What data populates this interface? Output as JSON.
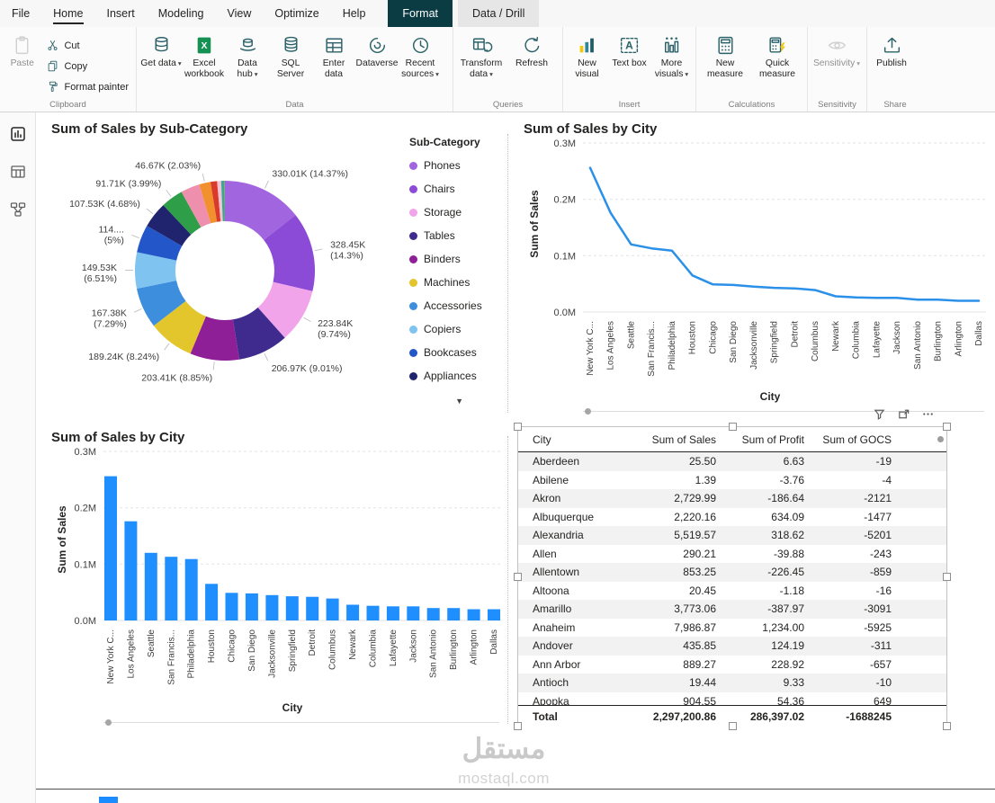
{
  "icons": {
    "chevron_down": "▾",
    "legend_more": "▼"
  },
  "menubar": {
    "items": [
      {
        "label": "File"
      },
      {
        "label": "Home"
      },
      {
        "label": "Insert"
      },
      {
        "label": "Modeling"
      },
      {
        "label": "View"
      },
      {
        "label": "Optimize"
      },
      {
        "label": "Help"
      }
    ],
    "contextual": [
      {
        "label": "Format"
      },
      {
        "label": "Data / Drill"
      }
    ]
  },
  "ribbon": {
    "groups": [
      {
        "label": "Clipboard",
        "items": [
          {
            "label": "Paste",
            "disabled": true
          },
          {
            "label": "Cut"
          },
          {
            "label": "Copy"
          },
          {
            "label": "Format painter"
          }
        ]
      },
      {
        "label": "Data",
        "items": [
          {
            "label": "Get data",
            "chev": true
          },
          {
            "label": "Excel workbook"
          },
          {
            "label": "Data hub",
            "chev": true
          },
          {
            "label": "SQL Server"
          },
          {
            "label": "Enter data"
          },
          {
            "label": "Dataverse"
          },
          {
            "label": "Recent sources",
            "chev": true
          }
        ]
      },
      {
        "label": "Queries",
        "items": [
          {
            "label": "Transform data",
            "chev": true
          },
          {
            "label": "Refresh"
          }
        ]
      },
      {
        "label": "Insert",
        "items": [
          {
            "label": "New visual"
          },
          {
            "label": "Text box"
          },
          {
            "label": "More visuals",
            "chev": true
          }
        ]
      },
      {
        "label": "Calculations",
        "items": [
          {
            "label": "New measure"
          },
          {
            "label": "Quick measure"
          }
        ]
      },
      {
        "label": "Sensitivity",
        "items": [
          {
            "label": "Sensitivity",
            "chev": true,
            "disabled": true
          }
        ]
      },
      {
        "label": "Share",
        "items": [
          {
            "label": "Publish"
          }
        ]
      }
    ]
  },
  "left_rail": {
    "icons": [
      "report-view",
      "data-view",
      "model-view"
    ]
  },
  "watermark": {
    "title": "مستقل",
    "subtitle": "mostaql.com"
  },
  "chart_data": [
    {
      "type": "pie",
      "title": "Sum of Sales by Sub-Category",
      "legend_title": "Sub-Category",
      "legend_position": "right",
      "legend": [
        {
          "name": "Phones",
          "color": "#a265e0"
        },
        {
          "name": "Chairs",
          "color": "#8b4bd6"
        },
        {
          "name": "Storage",
          "color": "#f2a4ea"
        },
        {
          "name": "Tables",
          "color": "#3f2a8e"
        },
        {
          "name": "Binders",
          "color": "#8e1f96"
        },
        {
          "name": "Machines",
          "color": "#e3c62c"
        },
        {
          "name": "Accessories",
          "color": "#3e8ede"
        },
        {
          "name": "Copiers",
          "color": "#7fc3f0"
        },
        {
          "name": "Bookcases",
          "color": "#2356c8"
        },
        {
          "name": "Appliances",
          "color": "#20246e"
        }
      ],
      "slices": [
        {
          "name": "Phones",
          "label": "330.01K (14.37%)",
          "pct": 14.37,
          "color": "#a265e0"
        },
        {
          "name": "Chairs",
          "label": "328.45K (14.3%)",
          "pct": 14.3,
          "color": "#8b4bd6"
        },
        {
          "name": "Storage",
          "label": "223.84K (9.74%)",
          "pct": 9.74,
          "color": "#f2a4ea"
        },
        {
          "name": "Tables",
          "label": "206.97K (9.01%)",
          "pct": 9.01,
          "color": "#3f2a8e"
        },
        {
          "name": "Binders",
          "label": "203.41K (8.85%)",
          "pct": 8.85,
          "color": "#8e1f96"
        },
        {
          "name": "Machines",
          "label": "189.24K (8.24%)",
          "pct": 8.24,
          "color": "#e3c62c"
        },
        {
          "name": "Accessories",
          "label": "167.38K (7.29%)",
          "pct": 7.29,
          "color": "#3e8ede"
        },
        {
          "name": "Copiers",
          "label": "149.53K (6.51%)",
          "pct": 6.51,
          "color": "#7fc3f0"
        },
        {
          "name": "Bookcases",
          "label": "114.... (5%)",
          "pct": 5.0,
          "color": "#2356c8"
        },
        {
          "name": "Appliances",
          "label": "107.53K (4.68%)",
          "pct": 4.68,
          "color": "#20246e"
        },
        {
          "name": "",
          "label": "91.71K (3.99%)",
          "pct": 3.99,
          "color": "#2f9e48"
        },
        {
          "name": "",
          "label": "",
          "pct": 3.42,
          "color": "#ef8fae"
        },
        {
          "name": "",
          "label": "46.67K (2.03%)",
          "pct": 2.03,
          "color": "#f2902e"
        },
        {
          "name": "",
          "label": "",
          "pct": 1.18,
          "color": "#d93b2b"
        },
        {
          "name": "",
          "label": "",
          "pct": 0.72,
          "color": "#f4c2d4"
        },
        {
          "name": "",
          "label": "",
          "pct": 0.54,
          "color": "#38a89e"
        },
        {
          "name": "",
          "label": "",
          "pct": 0.13,
          "color": "#89a23c"
        }
      ]
    },
    {
      "type": "line",
      "title": "Sum of Sales by City",
      "xlabel": "City",
      "ylabel": "Sum of Sales",
      "ylim": [
        0,
        0.3
      ],
      "color": "#2b90e8",
      "yticks": [
        {
          "label": "0.0M",
          "v": 0
        },
        {
          "label": "0.1M",
          "v": 0.1
        },
        {
          "label": "0.2M",
          "v": 0.2
        },
        {
          "label": "0.3M",
          "v": 0.3
        }
      ],
      "categories": [
        "New York C...",
        "Los Angeles",
        "Seattle",
        "San Francis...",
        "Philadelphia",
        "Houston",
        "Chicago",
        "San Diego",
        "Jacksonville",
        "Springfield",
        "Detroit",
        "Columbus",
        "Newark",
        "Columbia",
        "Lafayette",
        "Jackson",
        "San Antonio",
        "Burlington",
        "Arlington",
        "Dallas"
      ],
      "values": [
        0.256,
        0.176,
        0.12,
        0.113,
        0.109,
        0.065,
        0.049,
        0.048,
        0.045,
        0.043,
        0.042,
        0.039,
        0.028,
        0.026,
        0.025,
        0.025,
        0.022,
        0.022,
        0.02,
        0.02
      ]
    },
    {
      "type": "bar",
      "title": "Sum of Sales by City",
      "xlabel": "City",
      "ylabel": "Sum of Sales",
      "ylim": [
        0,
        0.3
      ],
      "color": "#1f8fff",
      "yticks": [
        {
          "label": "0.0M",
          "v": 0
        },
        {
          "label": "0.1M",
          "v": 0.1
        },
        {
          "label": "0.2M",
          "v": 0.2
        },
        {
          "label": "0.3M",
          "v": 0.3
        }
      ],
      "categories": [
        "New York C...",
        "Los Angeles",
        "Seattle",
        "San Francis...",
        "Philadelphia",
        "Houston",
        "Chicago",
        "San Diego",
        "Jacksonville",
        "Springfield",
        "Detroit",
        "Columbus",
        "Newark",
        "Columbia",
        "Lafayette",
        "Jackson",
        "San Antonio",
        "Burlington",
        "Arlington",
        "Dallas"
      ],
      "values": [
        0.256,
        0.176,
        0.12,
        0.113,
        0.109,
        0.065,
        0.049,
        0.048,
        0.045,
        0.043,
        0.042,
        0.039,
        0.028,
        0.026,
        0.025,
        0.025,
        0.022,
        0.022,
        0.02,
        0.02
      ]
    },
    {
      "type": "table",
      "columns": [
        "City",
        "Sum of Sales",
        "Sum of Profit",
        "Sum of GOCS"
      ],
      "rows": [
        [
          "Aberdeen",
          "25.50",
          "6.63",
          "-19"
        ],
        [
          "Abilene",
          "1.39",
          "-3.76",
          "-4"
        ],
        [
          "Akron",
          "2,729.99",
          "-186.64",
          "-2121"
        ],
        [
          "Albuquerque",
          "2,220.16",
          "634.09",
          "-1477"
        ],
        [
          "Alexandria",
          "5,519.57",
          "318.62",
          "-5201"
        ],
        [
          "Allen",
          "290.21",
          "-39.88",
          "-243"
        ],
        [
          "Allentown",
          "853.25",
          "-226.45",
          "-859"
        ],
        [
          "Altoona",
          "20.45",
          "-1.18",
          "-16"
        ],
        [
          "Amarillo",
          "3,773.06",
          "-387.97",
          "-3091"
        ],
        [
          "Anaheim",
          "7,986.87",
          "1,234.00",
          "-5925"
        ],
        [
          "Andover",
          "435.85",
          "124.19",
          "-311"
        ],
        [
          "Ann Arbor",
          "889.27",
          "228.92",
          "-657"
        ],
        [
          "Antioch",
          "19.44",
          "9.33",
          "-10"
        ],
        [
          "Apopka",
          "904.55",
          "54.36",
          "649"
        ]
      ],
      "total": [
        "Total",
        "2,297,200.86",
        "286,397.02",
        "-1688245"
      ]
    }
  ]
}
